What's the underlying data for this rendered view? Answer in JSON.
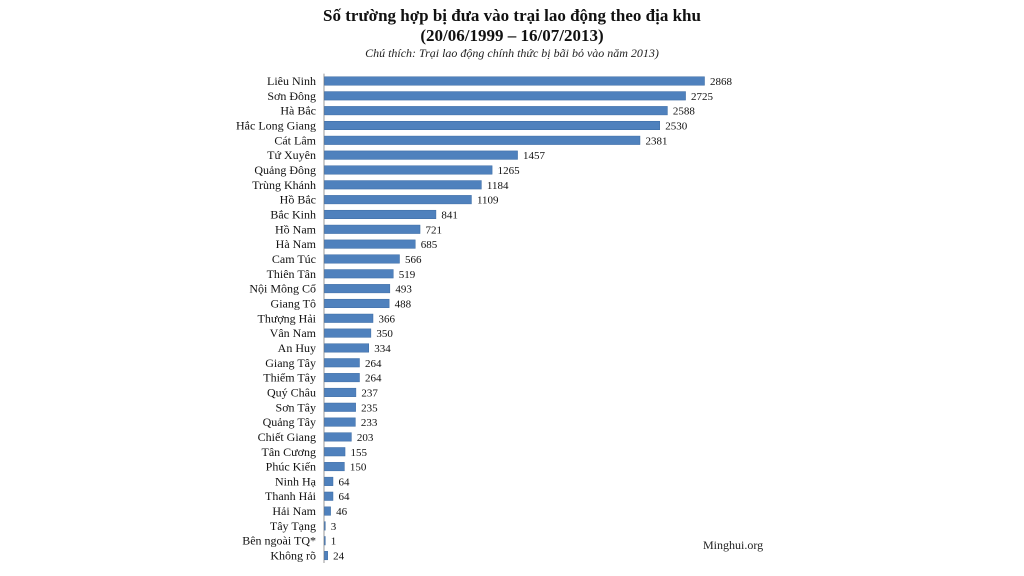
{
  "page": {
    "title_line1": "Số trường hợp bị đưa vào trại lao động theo địa khu",
    "title_line2": "(20/06/1999 – 16/07/2013)",
    "subtitle": "Chú thích: Trại lao động chính thức bị bãi bỏ vào năm 2013)",
    "source": "Minghui.org"
  },
  "colors": {
    "bar": "#4f81bd",
    "bar_shade": "#3a6aa3",
    "axis": "#9a9a9a",
    "text": "#111111"
  },
  "chart_data": {
    "type": "bar",
    "orientation": "horizontal",
    "title": "Số trường hợp bị đưa vào trại lao động theo địa khu",
    "subtitle": "(20/06/1999 – 16/07/2013)",
    "categories": [
      "Liêu Ninh",
      "Sơn Đông",
      "Hà Bắc",
      "Hắc Long Giang",
      "Cát Lâm",
      "Tứ Xuyên",
      "Quảng Đông",
      "Trùng Khánh",
      "Hồ Bắc",
      "Bắc Kinh",
      "Hồ Nam",
      "Hà Nam",
      "Cam Túc",
      "Thiên Tân",
      "Nội Mông Cổ",
      "Giang Tô",
      "Thượng Hải",
      "Vân Nam",
      "An Huy",
      "Giang Tây",
      "Thiểm Tây",
      "Quý Châu",
      "Sơn Tây",
      "Quảng Tây",
      "Chiết Giang",
      "Tân Cương",
      "Phúc Kiến",
      "Ninh Hạ",
      "Thanh Hải",
      "Hải Nam",
      "Tây Tạng",
      "Bên ngoài TQ*",
      "Không rõ"
    ],
    "values": [
      2868,
      2725,
      2588,
      2530,
      2381,
      1457,
      1265,
      1184,
      1109,
      841,
      721,
      685,
      566,
      519,
      493,
      488,
      366,
      350,
      334,
      264,
      264,
      237,
      235,
      233,
      203,
      155,
      150,
      64,
      64,
      46,
      3,
      1,
      24
    ],
    "xlim": [
      0,
      2868
    ],
    "grid": false,
    "legend": "none",
    "data_labels": true
  }
}
